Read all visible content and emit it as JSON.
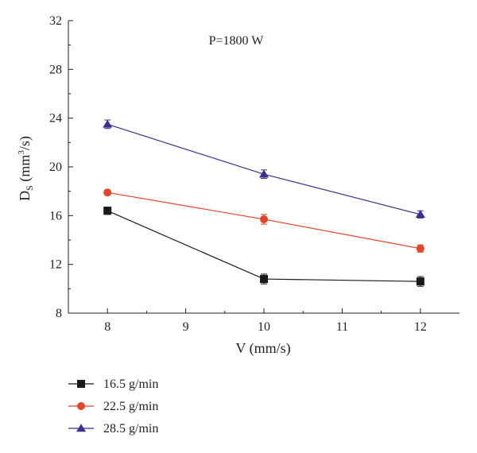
{
  "chart_data": {
    "type": "line",
    "title": "",
    "annotation": "P=1800 W",
    "xlabel": "V (mm/s)",
    "ylabel": {
      "main": "D",
      "sub": "S",
      "unit_before": " (mm",
      "sup": "3",
      "unit_after": "/s)"
    },
    "xlim": [
      7.5,
      12.5
    ],
    "ylim": [
      8,
      32
    ],
    "xticks": [
      8,
      9,
      10,
      11,
      12
    ],
    "yticks": [
      8,
      12,
      16,
      20,
      24,
      28,
      32
    ],
    "grid": false,
    "legend_position": "bottom-left",
    "x": [
      8,
      10,
      12
    ],
    "series": [
      {
        "name": "16.5 g/min",
        "color": "#1a1a1a",
        "marker": "square",
        "values": [
          16.4,
          10.8,
          10.6
        ],
        "errors": [
          0.3,
          0.4,
          0.4
        ]
      },
      {
        "name": "22.5 g/min",
        "color": "#e0462a",
        "marker": "circle",
        "values": [
          17.9,
          15.7,
          13.3
        ],
        "errors": [
          0.15,
          0.4,
          0.3
        ]
      },
      {
        "name": "28.5 g/min",
        "color": "#3b2f8f",
        "marker": "triangle",
        "values": [
          23.5,
          19.4,
          16.1
        ],
        "errors": [
          0.35,
          0.35,
          0.3
        ]
      }
    ]
  }
}
